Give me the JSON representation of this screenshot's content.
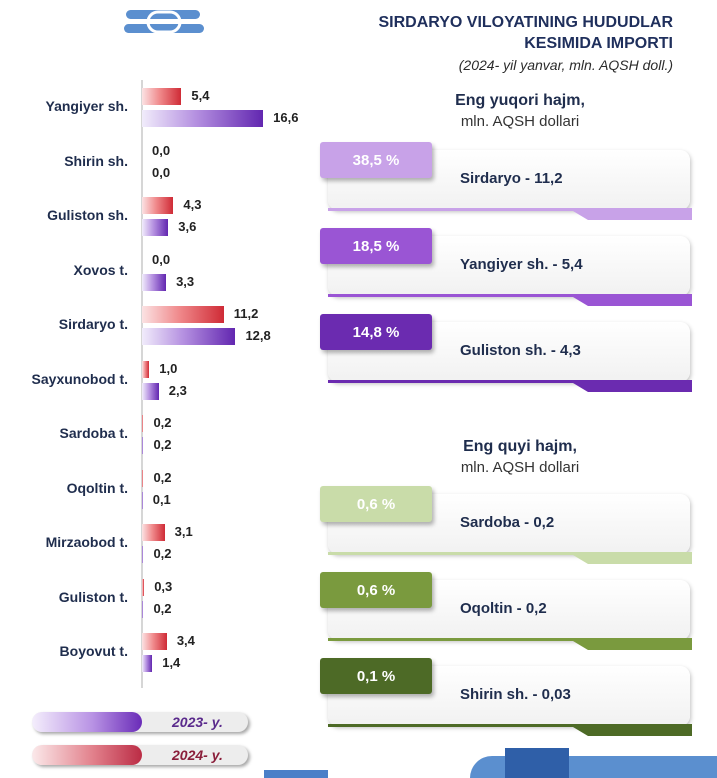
{
  "header": {
    "title_line1": "SIRDARYO VILOYATINING HUDUDLAR",
    "title_line2": "KESIMIDA IMPORTI",
    "subtitle": "(2024- yil yanvar, mln. AQSH doll.)"
  },
  "colors": {
    "y2024": "#cf2b36",
    "y2023": "#6227b0"
  },
  "chart_data": {
    "type": "bar",
    "orientation": "horizontal",
    "categories": [
      "Yangiyer sh.",
      "Shirin sh.",
      "Guliston sh.",
      "Xovos t.",
      "Sirdaryo t.",
      "Sayxunobod t.",
      "Sardoba t.",
      "Oqoltin t.",
      "Mirzaobod t.",
      "Guliston t.",
      "Boyovut t."
    ],
    "series": [
      {
        "name": "2024- y.",
        "values": [
          5.4,
          0.0,
          4.3,
          0.0,
          11.2,
          1.0,
          0.2,
          0.2,
          3.1,
          0.3,
          3.4
        ],
        "labels": [
          "5,4",
          "0,0",
          "4,3",
          "0,0",
          "11,2",
          "1,0",
          "0,2",
          "0,2",
          "3,1",
          "0,3",
          "3,4"
        ]
      },
      {
        "name": "2023- y.",
        "values": [
          16.6,
          0.0,
          3.6,
          3.3,
          12.8,
          2.3,
          0.2,
          0.1,
          0.2,
          0.2,
          1.4
        ],
        "labels": [
          "16,6",
          "0,0",
          "3,6",
          "3,3",
          "12,8",
          "2,3",
          "0,2",
          "0,1",
          "0,2",
          "0,2",
          "1,4"
        ]
      }
    ],
    "xlim": [
      0,
      16.6
    ],
    "legend": "bottom-left"
  },
  "legend": {
    "y2023": "2023- y.",
    "y2024": "2024- y."
  },
  "top_section": {
    "heading": "Eng yuqori hajm,",
    "unit": "mln. AQSH dollari",
    "cards": [
      {
        "percent": "38,5 %",
        "text": "Sirdaryo - 11,2",
        "color": "#c8a2e8"
      },
      {
        "percent": "18,5 %",
        "text": "Yangiyer sh. - 5,4",
        "color": "#9a55d4"
      },
      {
        "percent": "14,8 %",
        "text": "Guliston sh. - 4,3",
        "color": "#6b2bb0"
      }
    ]
  },
  "bottom_section": {
    "heading": "Eng quyi hajm,",
    "unit": "mln. AQSH dollari",
    "cards": [
      {
        "percent": "0,6 %",
        "text": "Sardoba -  0,2",
        "color": "#c9dca9"
      },
      {
        "percent": "0,6 %",
        "text": "Oqoltin - 0,2",
        "color": "#7a9a3e"
      },
      {
        "percent": "0,1 %",
        "text": "Shirin sh. - 0,03",
        "color": "#4d6a26"
      }
    ]
  }
}
